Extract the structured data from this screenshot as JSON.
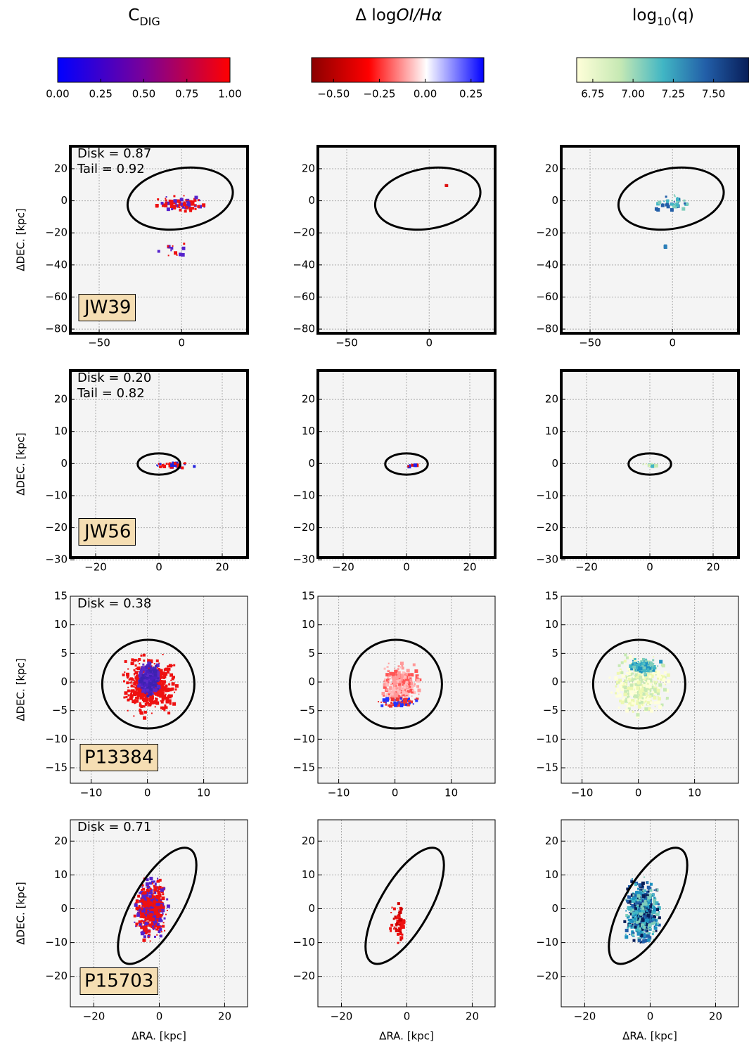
{
  "chart_data": {
    "type": "image-grid",
    "xlabel": "ΔRA. [kpc]",
    "ylabel": "ΔDEC. [kpc]",
    "columns": [
      {
        "title": [
          {
            "text": "C"
          },
          {
            "text": "DIG",
            "style": "sub"
          }
        ],
        "colorbar": {
          "type": "colorbar",
          "colors": [
            "#0000ff",
            "#7a0099",
            "#ff0000"
          ],
          "clim": [
            0,
            1
          ],
          "ticks": [
            {
              "value": 0,
              "label": "0.00"
            },
            0.25,
            {
              "value": 0.5,
              "label": "0.50"
            },
            0.75,
            {
              "value": 1,
              "label": "1.00"
            }
          ]
        }
      },
      {
        "title": [
          {
            "text": "Δ log"
          },
          {
            "text": "OI/Hα",
            "style": "italic"
          }
        ],
        "colorbar": {
          "type": "colorbar",
          "colors": [
            "#8b0000",
            "#ff0000",
            "#ffffff",
            "#0000ff"
          ],
          "clim": [
            -0.62,
            0.32
          ],
          "ticks": [
            {
              "value": -0.5,
              "label": "−0.50"
            },
            {
              "value": -0.25,
              "label": "−0.25"
            },
            {
              "value": 0,
              "label": "0.00"
            },
            0.25
          ]
        }
      },
      {
        "title": [
          {
            "text": "log"
          },
          {
            "text": "10",
            "style": "sub"
          },
          {
            "text": "(q)"
          }
        ],
        "colorbar": {
          "type": "colorbar",
          "colors": [
            "#ffffd9",
            "#c7e9b4",
            "#41b6c4",
            "#225ea8",
            "#081d58"
          ],
          "clim": [
            6.65,
            7.72
          ],
          "ticks": [
            6.75,
            {
              "value": 7,
              "label": "7.00"
            },
            7.25,
            {
              "value": 7.5,
              "label": "7.50"
            }
          ]
        }
      }
    ],
    "rows": [
      {
        "label": "JW39",
        "annotations": [
          "Disk = 0.87",
          "Tail = 0.92"
        ],
        "thick_frame": true,
        "xlim": [
          -67.5,
          40
        ],
        "ylim": [
          -82.6,
          34
        ],
        "xticks": [
          {
            "value": -50,
            "label": "−50"
          },
          0
        ],
        "yticks": [
          20,
          0,
          {
            "value": -20,
            "label": "−20"
          },
          {
            "value": -40,
            "label": "−40"
          },
          {
            "value": -60,
            "label": "−60"
          },
          {
            "value": -80,
            "label": "−80"
          }
        ]
      },
      {
        "label": "JW56",
        "annotations": [
          "Disk = 0.20",
          "Tail = 0.82"
        ],
        "thick_frame": true,
        "xlim": [
          -28,
          28
        ],
        "ylim": [
          -29.3,
          29
        ],
        "xticks": [
          {
            "value": -20,
            "label": "−20"
          },
          0,
          20
        ],
        "yticks": [
          20,
          10,
          0,
          {
            "value": -10,
            "label": "−10"
          },
          {
            "value": -20,
            "label": "−20"
          },
          {
            "value": -30,
            "label": "−30"
          }
        ]
      },
      {
        "label": "P13384",
        "annotations": [
          "Disk = 0.38"
        ],
        "thick_frame": false,
        "xlim": [
          -13.7,
          17.8
        ],
        "ylim": [
          -17.7,
          15
        ],
        "xticks": [
          {
            "value": -10,
            "label": "−10"
          },
          0,
          10
        ],
        "yticks": [
          15,
          10,
          5,
          0,
          {
            "value": -5,
            "label": "−5"
          },
          {
            "value": -10,
            "label": "−10"
          },
          {
            "value": -15,
            "label": "−15"
          }
        ]
      },
      {
        "label": "P15703",
        "annotations": [
          "Disk = 0.71"
        ],
        "thick_frame": false,
        "xlim": [
          -27.2,
          27
        ],
        "ylim": [
          -29,
          26.3
        ],
        "xticks": [
          {
            "value": -20,
            "label": "−20"
          },
          0,
          20
        ],
        "yticks": [
          20,
          10,
          0,
          {
            "value": -10,
            "label": "−10"
          },
          {
            "value": -20,
            "label": "−20"
          }
        ]
      }
    ]
  }
}
